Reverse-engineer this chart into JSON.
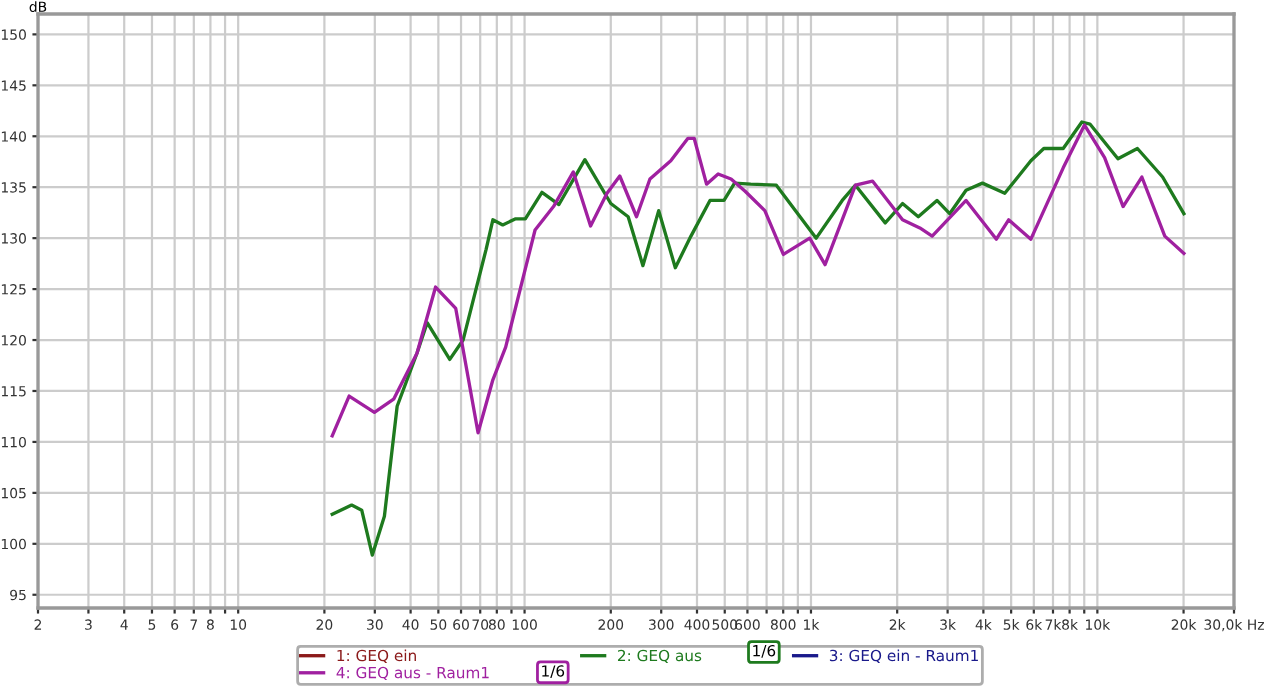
{
  "chart_data": {
    "type": "line",
    "ylabel": "dB",
    "xlim": [
      2,
      30000
    ],
    "ylim": [
      93.7,
      152
    ],
    "log": "x",
    "grid": true,
    "legend": "bottom",
    "marker": "none",
    "line_style": "solid",
    "yticks": [
      95,
      100,
      105,
      110,
      115,
      120,
      125,
      130,
      135,
      140,
      145,
      150
    ],
    "xticks": [
      2,
      3,
      4,
      5,
      6,
      7,
      8,
      {
        "value": 9,
        "label": null
      },
      10,
      20,
      30,
      40,
      50,
      60,
      70,
      80,
      {
        "value": 90,
        "label": null
      },
      100,
      200,
      300,
      400,
      500,
      600,
      {
        "value": 700,
        "label": null
      },
      800,
      {
        "value": 900,
        "label": null
      },
      {
        "value": 1000,
        "label": "1k"
      },
      {
        "value": 2000,
        "label": "2k"
      },
      {
        "value": 3000,
        "label": "3k"
      },
      {
        "value": 4000,
        "label": "4k"
      },
      {
        "value": 5000,
        "label": "5k"
      },
      {
        "value": 6000,
        "label": "6k"
      },
      {
        "value": 7000,
        "label": "7k"
      },
      {
        "value": 8000,
        "label": "8k"
      },
      {
        "value": 9000,
        "label": null
      },
      {
        "value": 10000,
        "label": "10k"
      },
      {
        "value": 20000,
        "label": "20k"
      },
      {
        "value": 30000,
        "label": "30,0k Hz"
      }
    ],
    "annotations": [
      "1/6",
      "1/6"
    ],
    "series": [
      {
        "name": "1: GEQ ein",
        "color": "#8b1a1a"
      },
      {
        "name": "2: GEQ aus",
        "color": "#1e7a1e",
        "x": [
          21.3,
          24.9,
          27,
          29.4,
          32.4,
          35.9,
          42.1,
          45.7,
          54.8,
          61,
          73.4,
          77.5,
          83.9,
          93.1,
          100.6,
          115,
          131.8,
          162.4,
          200,
          230,
          259,
          294,
          336,
          381,
          444,
          497,
          541,
          616,
          757,
          1043,
          1286,
          1430,
          1817,
          2088,
          2370,
          2754,
          3050,
          3480,
          3970,
          4750,
          5860,
          6500,
          7600,
          8830,
          9420,
          11800,
          13800,
          16900,
          20050
        ],
        "values": [
          102.9,
          103.8,
          103.3,
          98.9,
          102.7,
          113.5,
          118.7,
          121.7,
          118.1,
          120,
          128.9,
          131.8,
          131.3,
          131.9,
          131.9,
          134.5,
          133.3,
          137.7,
          133.4,
          132.1,
          127.3,
          132.7,
          127.1,
          130.2,
          133.7,
          133.7,
          135.4,
          135.3,
          135.2,
          130.0,
          133.7,
          135.2,
          131.5,
          133.4,
          132.1,
          133.7,
          132.4,
          134.7,
          135.4,
          134.4,
          137.6,
          138.8,
          138.8,
          141.4,
          141.2,
          137.8,
          138.8,
          136.0,
          132.4
        ]
      },
      {
        "name": "3: GEQ ein - Raum1",
        "color": "#1a1a8b"
      },
      {
        "name": "4: GEQ aus - Raum1",
        "color": "#a020a0",
        "x": [
          21.3,
          24.4,
          29.9,
          34.9,
          42.1,
          48.9,
          57.5,
          68.8,
          77.5,
          85.9,
          108.8,
          126.2,
          148,
          170,
          194,
          215,
          246,
          274,
          324,
          372,
          391,
          432,
          474,
          526,
          589,
          690,
          801,
          990,
          1120,
          1430,
          1640,
          2088,
          2400,
          2650,
          3480,
          4440,
          4900,
          5860,
          7600,
          9020,
          10600,
          12300,
          14300,
          17200,
          20050
        ],
        "values": [
          110.6,
          114.5,
          112.9,
          114.2,
          118.7,
          125.2,
          123.1,
          110.9,
          116.1,
          119.3,
          130.8,
          133.1,
          136.5,
          131.2,
          134.4,
          136.1,
          132.1,
          135.8,
          137.6,
          139.8,
          139.8,
          135.3,
          136.3,
          135.8,
          134.6,
          132.7,
          128.4,
          130.0,
          127.4,
          135.2,
          135.6,
          131.8,
          131.0,
          130.2,
          133.7,
          129.9,
          131.8,
          129.9,
          136.9,
          141.1,
          137.9,
          133.1,
          136.0,
          130.2,
          128.5
        ]
      }
    ]
  }
}
